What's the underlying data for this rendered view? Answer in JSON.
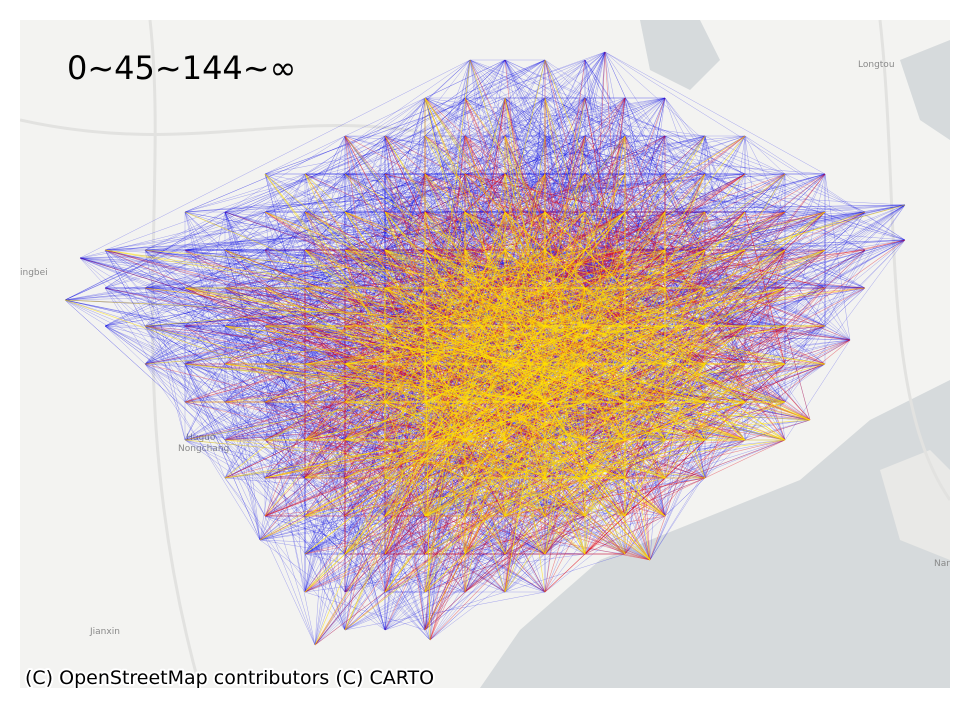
{
  "map": {
    "legend_title": "0~45~144~∞",
    "attribution": "(C) OpenStreetMap contributors (C) CARTO",
    "place_labels": [
      "Longtou",
      "ingbei",
      "Huguo",
      "Nongchang",
      "Jianxin",
      "Nar"
    ]
  }
}
